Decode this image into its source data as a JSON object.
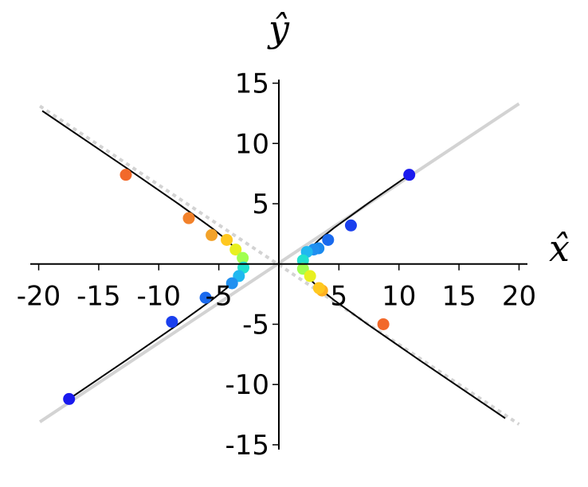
{
  "chart_data": {
    "type": "line",
    "xlabel": "x̂",
    "ylabel": "ŷ",
    "xlim": [
      -20.7,
      20.7
    ],
    "ylim": [
      -15.4,
      15.3
    ],
    "xticks": [
      -20,
      -15,
      -10,
      -5,
      5,
      10,
      15,
      20
    ],
    "yticks": [
      -15,
      -10,
      -5,
      5,
      10,
      15
    ],
    "series": [
      {
        "style": "solid",
        "color": "#d3d3d3",
        "x": [
          -19.9,
          20
        ],
        "y": [
          -13.1,
          13.3
        ]
      },
      {
        "style": "dotted",
        "color": "#d3d3d3",
        "x": [
          -19.9,
          20
        ],
        "y": [
          13.1,
          -13.3
        ]
      },
      {
        "style": "solid",
        "color": "#000000",
        "x": [
          -19.7,
          -12.74,
          -8.38,
          -5.6,
          -4.34,
          -3.33,
          -3.01,
          -2.9,
          -3.01,
          -3.33,
          -4.34,
          -5.6,
          -8.38,
          -12.74,
          -17.47
        ],
        "y": [
          12.7,
          8,
          5,
          3,
          2,
          1,
          0.5,
          0,
          -0.5,
          -1,
          -2,
          -3,
          -5,
          -8,
          -11.2
        ]
      },
      {
        "style": "solid",
        "color": "#000000",
        "x": [
          10.86,
          7.38,
          4.6,
          3.34,
          2.33,
          2.01,
          1.9,
          2.01,
          2.33,
          3.34,
          4.6,
          7.38,
          11.74,
          18.85
        ],
        "y": [
          7.4,
          5,
          3,
          2,
          1,
          0.5,
          0,
          -0.5,
          -1,
          -2,
          -3,
          -5,
          -8,
          -12.8
        ]
      },
      {
        "style": "markers",
        "x": [
          10.86,
          6.0,
          4.1,
          3.3,
          -17.47,
          -8.9,
          -6.1,
          -12.74,
          -7.5,
          -5.6,
          8.7,
          3.6,
          -4.34,
          -3.6,
          -3.01,
          -2.95,
          -3.33,
          -3.9,
          2.9,
          2.33,
          2.01,
          2.01,
          2.6,
          3.34
        ],
        "y": [
          7.4,
          3.2,
          2.0,
          1.3,
          -11.2,
          -4.8,
          -2.8,
          7.4,
          3.8,
          2.4,
          -5.0,
          -2.2,
          2,
          1.2,
          0.5,
          -0.3,
          -1,
          -1.6,
          1.2,
          1,
          0.3,
          -0.4,
          -1.0,
          -2
        ],
        "colors": [
          "#1a1aee",
          "#1a3fee",
          "#1a6aee",
          "#1a8aee",
          "#1a1aee",
          "#1a3fee",
          "#1a6aee",
          "#f2692a",
          "#f2812a",
          "#f2a22a",
          "#f2692a",
          "#ffb020",
          "#ffc820",
          "#e8f020",
          "#a0ff50",
          "#20e0d0",
          "#20b8f0",
          "#2090f0",
          "#2090f0",
          "#20b8f0",
          "#20e0d0",
          "#a0ff50",
          "#e8f020",
          "#ffc820"
        ]
      }
    ]
  }
}
